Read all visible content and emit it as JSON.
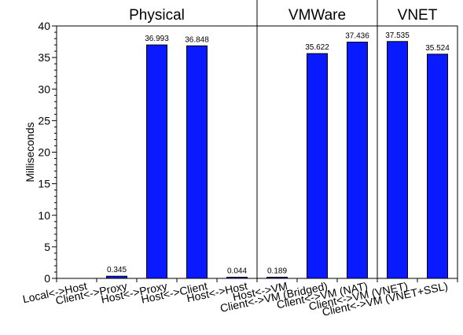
{
  "chart_data": {
    "type": "bar",
    "ylabel": "Milliseconds",
    "ylim": [
      0,
      40
    ],
    "yticks": [
      0,
      5,
      10,
      15,
      20,
      25,
      30,
      35,
      40
    ],
    "grid": false,
    "bar_color": "#0a1aff",
    "groups": [
      {
        "label": "Physical",
        "range": [
          0,
          4
        ]
      },
      {
        "label": "VMWare",
        "range": [
          5,
          7
        ]
      },
      {
        "label": "VNET",
        "range": [
          8,
          9
        ]
      }
    ],
    "categories": [
      "Local<->Host",
      "Client<->Proxy",
      "Host<->Proxy",
      "Host<->Client",
      "Host<->Host",
      "Host<->VM",
      "Client<->VM (Bridged)",
      "Client<->VM (NAT)",
      "Client<->VM (VNET)",
      "Client<->VM (VNET+SSL)"
    ],
    "values": [
      0,
      0.345,
      36.993,
      36.848,
      0.044,
      0.189,
      35.622,
      37.436,
      37.535,
      35.524
    ],
    "data_labels": [
      "",
      "0.345",
      "36.993",
      "36.848",
      "0.044",
      "0.189",
      "35.622",
      "37.436",
      "37.535",
      "35.524"
    ]
  }
}
